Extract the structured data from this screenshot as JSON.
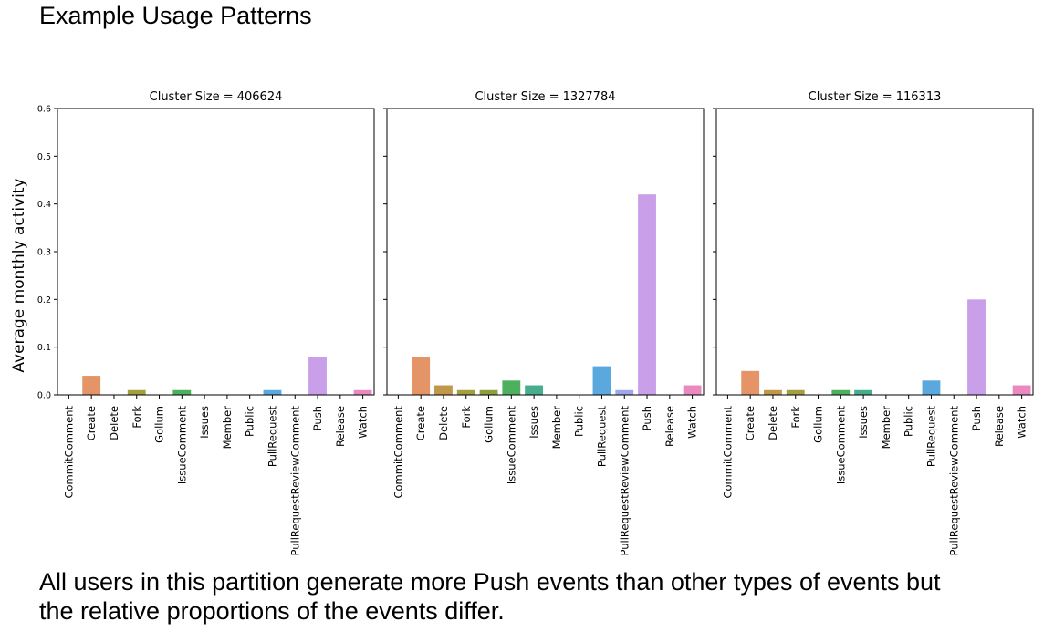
{
  "slide": {
    "title": "Example Usage Patterns",
    "caption_line1": "All users in this partition generate more Push events than other types of events but",
    "caption_line2": "the relative proportions of the events differ."
  },
  "colors": {
    "CommitComment": "#e0775f",
    "Create": "#e49467",
    "Delete": "#c0984a",
    "Fork": "#a39f3f",
    "Gollum": "#8ea03c",
    "IssueComment": "#4cb05e",
    "Issues": "#47ad8f",
    "Member": "#4baaa8",
    "Public": "#4fa6bd",
    "PullRequest": "#5aa8de",
    "PullRequestReviewComment": "#a0a6ec",
    "Push": "#c89fe8",
    "Release": "#e08fd6",
    "Watch": "#e989c0"
  },
  "chart_data": [
    {
      "type": "bar",
      "title": "Cluster Size = 406624",
      "ylabel": "Average monthly activity",
      "xlabel": "",
      "ylim": [
        0,
        0.6
      ],
      "yticks": [
        "0.0",
        "0.1",
        "0.2",
        "0.3",
        "0.4",
        "0.5",
        "0.6"
      ],
      "categories": [
        "CommitComment",
        "Create",
        "Delete",
        "Fork",
        "Gollum",
        "IssueComment",
        "Issues",
        "Member",
        "Public",
        "PullRequest",
        "PullRequestReviewComment",
        "Push",
        "Release",
        "Watch"
      ],
      "values": [
        0.0,
        0.04,
        0.0,
        0.01,
        0.0,
        0.01,
        0.0,
        0.0,
        0.0,
        0.01,
        0.0,
        0.08,
        0.0,
        0.01
      ]
    },
    {
      "type": "bar",
      "title": "Cluster Size = 1327784",
      "ylabel": "",
      "xlabel": "",
      "ylim": [
        0,
        0.6
      ],
      "categories": [
        "CommitComment",
        "Create",
        "Delete",
        "Fork",
        "Gollum",
        "IssueComment",
        "Issues",
        "Member",
        "Public",
        "PullRequest",
        "PullRequestReviewComment",
        "Push",
        "Release",
        "Watch"
      ],
      "values": [
        0.0,
        0.08,
        0.02,
        0.01,
        0.01,
        0.03,
        0.02,
        0.0,
        0.0,
        0.06,
        0.01,
        0.42,
        0.0,
        0.02
      ]
    },
    {
      "type": "bar",
      "title": "Cluster Size = 116313",
      "ylabel": "",
      "xlabel": "",
      "ylim": [
        0,
        0.6
      ],
      "categories": [
        "CommitComment",
        "Create",
        "Delete",
        "Fork",
        "Gollum",
        "IssueComment",
        "Issues",
        "Member",
        "Public",
        "PullRequest",
        "PullRequestReviewComment",
        "Push",
        "Release",
        "Watch"
      ],
      "values": [
        0.0,
        0.05,
        0.01,
        0.01,
        0.0,
        0.01,
        0.01,
        0.0,
        0.0,
        0.03,
        0.0,
        0.2,
        0.0,
        0.02
      ]
    }
  ]
}
